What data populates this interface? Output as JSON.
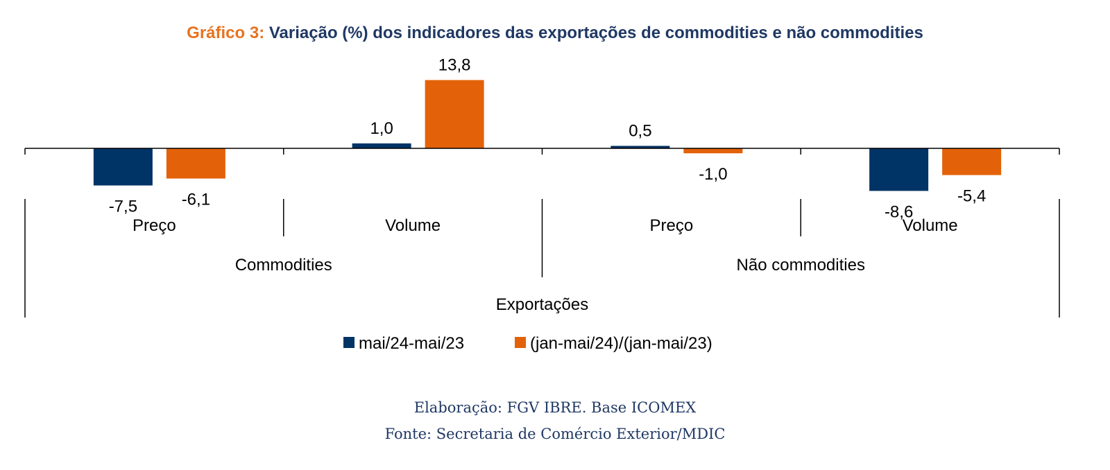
{
  "title": {
    "prefix": "Gráfico 3:",
    "main": "Variação (%) dos indicadores das exportações de commodities e não commodities"
  },
  "colors": {
    "series1": "#003366",
    "series2": "#E36209",
    "axis": "#000000",
    "title_prefix": "#E8731F",
    "title_main": "#1F3864",
    "credits": "#1F3864"
  },
  "chart_data": {
    "type": "bar",
    "categories": [
      "Preço",
      "Volume",
      "Preço",
      "Volume"
    ],
    "groups": [
      "Commodities",
      "Não commodities"
    ],
    "top_group": "Exportações",
    "series": [
      {
        "name": "mai/24-mai/23",
        "values": [
          -7.5,
          1.0,
          0.5,
          -8.6
        ],
        "labels": [
          "-7,5",
          "1,0",
          "0,5",
          "-8,6"
        ]
      },
      {
        "name": "(jan-mai/24)/(jan-mai/23)",
        "values": [
          -6.1,
          13.8,
          -1.0,
          -5.4
        ],
        "labels": [
          "-6,1",
          "13,8",
          "-1,0",
          "-5,4"
        ]
      }
    ],
    "ylim": [
      -10,
      15
    ],
    "grid": false,
    "legend": "bottom-center"
  },
  "credits": {
    "line1": "Elaboração: FGV IBRE. Base ICOMEX",
    "line2": "Fonte: Secretaria de Comércio Exterior/MDIC"
  }
}
